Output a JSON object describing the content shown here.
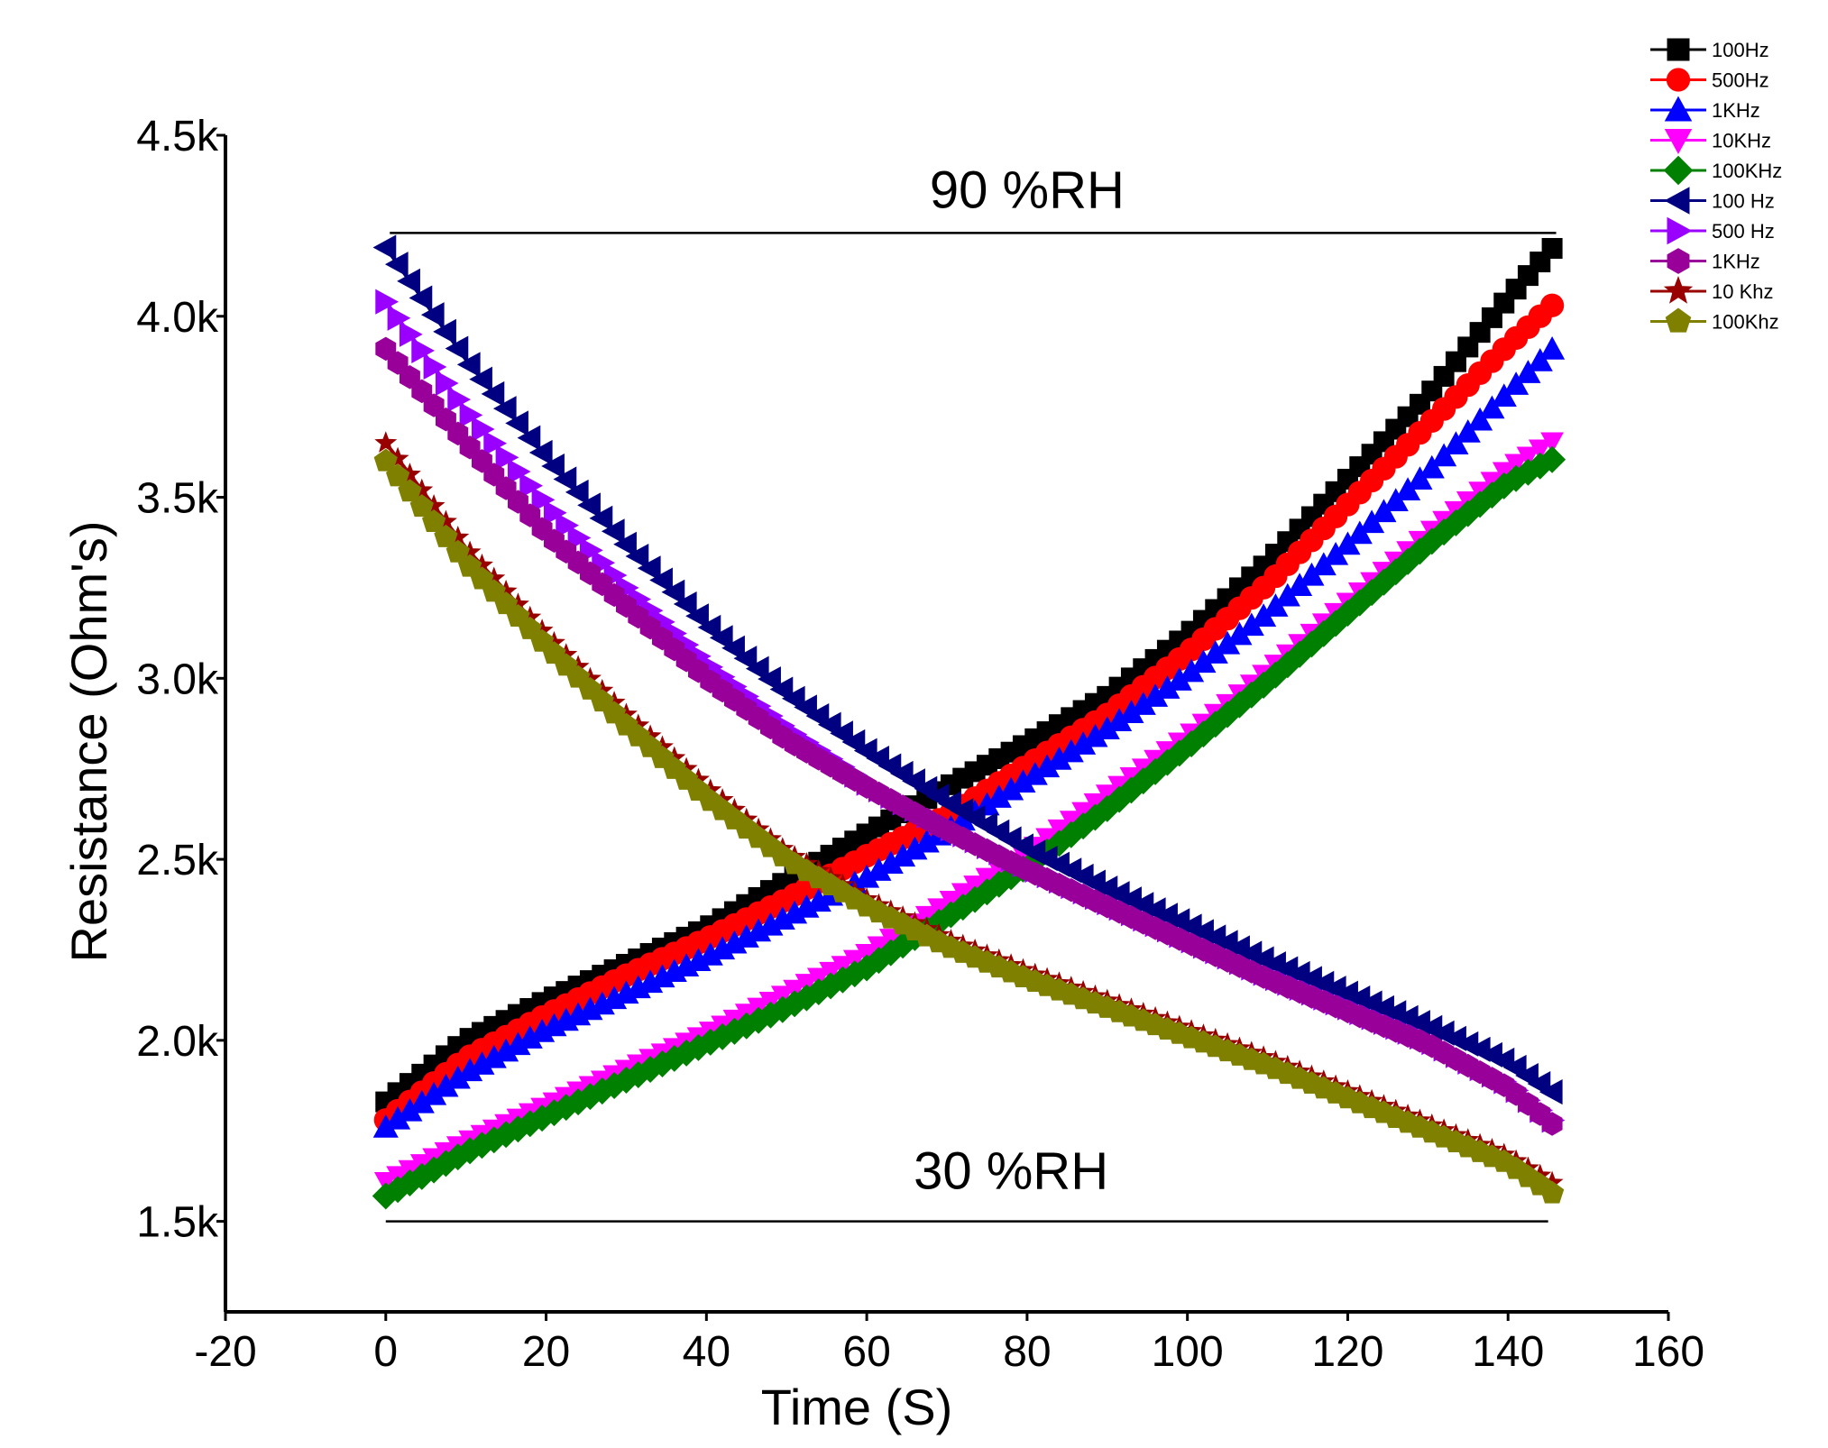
{
  "chart_data": {
    "type": "scatter",
    "title": "",
    "xlabel": "Time (S)",
    "ylabel": "Resistance (Ohm's)",
    "xlim": [
      -20,
      160
    ],
    "ylim": [
      1250,
      4500
    ],
    "x_ticks": [
      -20,
      0,
      20,
      40,
      60,
      80,
      100,
      120,
      140,
      160
    ],
    "x_tick_labels": [
      "-20",
      "0",
      "20",
      "40",
      "60",
      "80",
      "100",
      "120",
      "140",
      "160"
    ],
    "y_ticks": [
      1500,
      2000,
      2500,
      3000,
      3500,
      4000,
      4500
    ],
    "y_tick_labels": [
      "1.5k",
      "2.0k",
      "2.5k",
      "3.0k",
      "3.5k",
      "4.0k",
      "4.5k"
    ],
    "grid": false,
    "legend_position": "top-right",
    "annotations": [
      {
        "text": "90 %RH",
        "x": 80,
        "y": 4300,
        "line_from": 0.5,
        "line_to": 146,
        "line_y": 4230
      },
      {
        "text": "30 %RH",
        "x": 78,
        "y": 1590,
        "line_from": 0,
        "line_to": 145,
        "line_y": 1500
      }
    ],
    "series": [
      {
        "name": "100Hz",
        "group": "increasing",
        "color": "#000000",
        "marker": "square",
        "x": [
          0,
          10,
          20,
          30,
          40,
          50,
          60,
          70,
          80,
          90,
          100,
          110,
          120,
          130,
          140,
          146
        ],
        "values": [
          1830,
          2000,
          2110,
          2210,
          2310,
          2440,
          2570,
          2700,
          2820,
          2950,
          3120,
          3320,
          3550,
          3780,
          4050,
          4200
        ]
      },
      {
        "name": "500Hz",
        "group": "increasing",
        "color": "#ff0000",
        "marker": "circle",
        "x": [
          0,
          10,
          20,
          30,
          40,
          50,
          60,
          70,
          80,
          90,
          100,
          110,
          120,
          130,
          140,
          146
        ],
        "values": [
          1780,
          1950,
          2070,
          2180,
          2280,
          2390,
          2510,
          2620,
          2760,
          2900,
          3070,
          3260,
          3480,
          3700,
          3920,
          4040
        ]
      },
      {
        "name": "1KHz",
        "group": "increasing",
        "color": "#0000ff",
        "marker": "triangle-up",
        "x": [
          0,
          10,
          20,
          30,
          40,
          50,
          60,
          70,
          80,
          90,
          100,
          110,
          120,
          130,
          140,
          146
        ],
        "values": [
          1760,
          1910,
          2030,
          2130,
          2230,
          2340,
          2450,
          2580,
          2720,
          2860,
          3010,
          3180,
          3370,
          3570,
          3790,
          3920
        ]
      },
      {
        "name": "10KHz",
        "group": "increasing",
        "color": "#ff00ff",
        "marker": "triangle-down",
        "x": [
          0,
          10,
          20,
          30,
          40,
          50,
          60,
          70,
          80,
          90,
          100,
          110,
          120,
          130,
          140,
          146
        ],
        "values": [
          1610,
          1720,
          1820,
          1920,
          2020,
          2130,
          2240,
          2380,
          2520,
          2680,
          2840,
          3020,
          3210,
          3400,
          3580,
          3660
        ]
      },
      {
        "name": "100KHz",
        "group": "increasing",
        "color": "#008000",
        "marker": "diamond",
        "x": [
          0,
          10,
          20,
          30,
          40,
          50,
          60,
          70,
          80,
          90,
          100,
          110,
          120,
          130,
          140,
          146
        ],
        "values": [
          1570,
          1690,
          1790,
          1890,
          1990,
          2090,
          2200,
          2340,
          2480,
          2640,
          2810,
          2990,
          3180,
          3370,
          3540,
          3610
        ]
      },
      {
        "name": "100 Hz",
        "group": "decreasing",
        "color": "#000080",
        "marker": "triangle-left",
        "x": [
          0,
          10,
          20,
          30,
          40,
          50,
          60,
          70,
          80,
          90,
          100,
          110,
          120,
          130,
          140,
          146
        ],
        "values": [
          4190,
          3880,
          3610,
          3370,
          3150,
          2960,
          2800,
          2660,
          2530,
          2420,
          2320,
          2220,
          2130,
          2040,
          1940,
          1850
        ]
      },
      {
        "name": "500 Hz",
        "group": "decreasing",
        "color": "#9900ff",
        "marker": "triangle-right",
        "x": [
          0,
          10,
          20,
          30,
          40,
          50,
          60,
          70,
          80,
          90,
          100,
          110,
          120,
          130,
          140,
          146
        ],
        "values": [
          4040,
          3740,
          3480,
          3250,
          3040,
          2860,
          2710,
          2590,
          2480,
          2380,
          2280,
          2180,
          2090,
          2000,
          1880,
          1770
        ]
      },
      {
        "name": "1KHz",
        "group": "decreasing",
        "color": "#990099",
        "marker": "hexagon",
        "x": [
          0,
          10,
          20,
          30,
          40,
          50,
          60,
          70,
          80,
          90,
          100,
          110,
          120,
          130,
          140,
          146
        ],
        "values": [
          3910,
          3650,
          3400,
          3200,
          3000,
          2830,
          2700,
          2580,
          2470,
          2370,
          2270,
          2170,
          2080,
          1990,
          1870,
          1760
        ]
      },
      {
        "name": "10 Khz",
        "group": "decreasing",
        "color": "#990000",
        "marker": "star",
        "x": [
          0,
          10,
          20,
          30,
          40,
          50,
          60,
          70,
          80,
          90,
          100,
          110,
          120,
          130,
          140,
          146
        ],
        "values": [
          3650,
          3360,
          3120,
          2900,
          2700,
          2520,
          2390,
          2280,
          2190,
          2110,
          2030,
          1950,
          1860,
          1770,
          1680,
          1600
        ]
      },
      {
        "name": "100Khz",
        "group": "decreasing",
        "color": "#808000",
        "marker": "pentagon",
        "x": [
          0,
          10,
          20,
          30,
          40,
          50,
          60,
          70,
          80,
          90,
          100,
          110,
          120,
          130,
          140,
          146
        ],
        "values": [
          3600,
          3320,
          3090,
          2870,
          2670,
          2500,
          2370,
          2260,
          2170,
          2090,
          2010,
          1930,
          1840,
          1750,
          1660,
          1570
        ]
      }
    ]
  }
}
